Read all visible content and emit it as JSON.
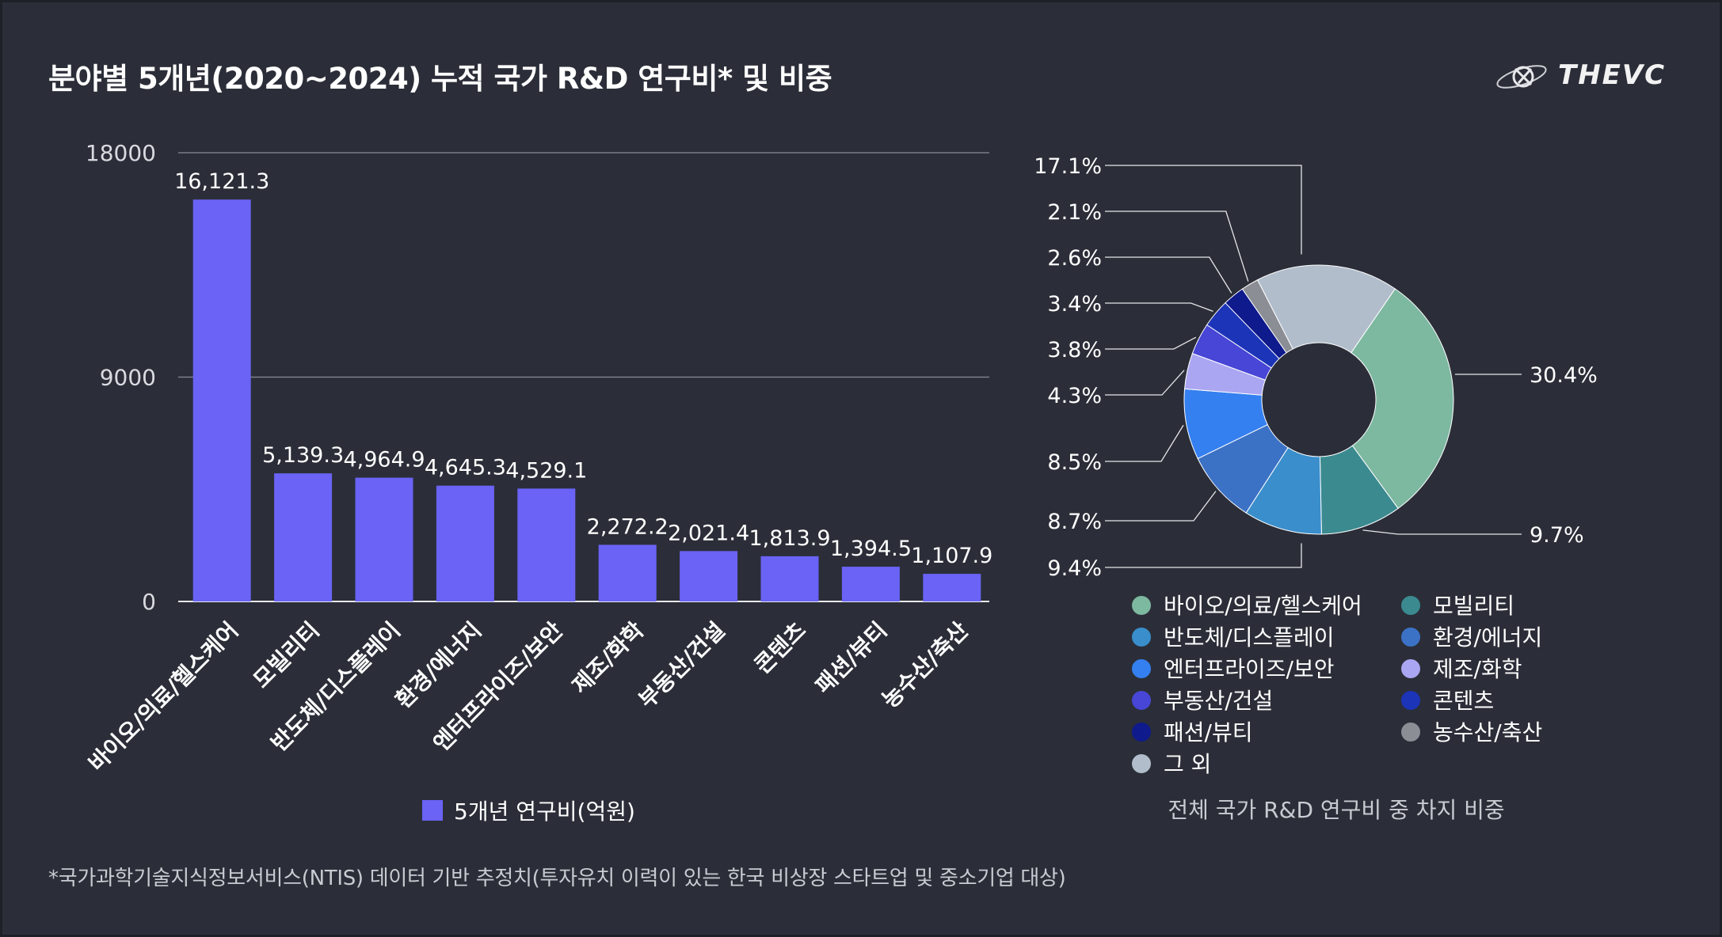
{
  "title": "분야별 5개년(2020~2024) 누적 국가 R&D 연구비* 및 비중",
  "brand": "THEVC",
  "footnote": "*국가과학기술지식정보서비스(NTIS) 데이터 기반 추정치(투자유치 이력이 있는 한국 비상장 스타트업 및 중소기업 대상)",
  "chart_data": [
    {
      "type": "bar",
      "title": "",
      "categories": [
        "바이오/의료/헬스케어",
        "모빌리티",
        "반도체/디스플레이",
        "환경/에너지",
        "엔터프라이즈/보안",
        "제조/화학",
        "부동산/건설",
        "콘텐츠",
        "패션/뷰티",
        "농수산/축산"
      ],
      "series": [
        {
          "name": "5개년 연구비(억원)",
          "values": [
            16121.3,
            5139.3,
            4964.9,
            4645.3,
            4529.1,
            2272.2,
            2021.4,
            1813.9,
            1394.5,
            1107.9
          ],
          "labels": [
            "16,121.3",
            "5,139.3",
            "4,964.9",
            "4,645.3",
            "4,529.1",
            "2,272.2",
            "2,021.4",
            "1,813.9",
            "1,394.5",
            "1,107.9"
          ],
          "color": "#6a63f5"
        }
      ],
      "yticks": [
        "0",
        "9000",
        "18000"
      ],
      "ylim": [
        0,
        18000
      ],
      "grid": true,
      "legend": "bottom"
    },
    {
      "type": "pie",
      "title": "전체 국가 R&D 연구비 중 차지 비중",
      "donut": true,
      "slices": [
        {
          "name": "바이오/의료/헬스케어",
          "value": 30.4,
          "label": "30.4%",
          "color": "#7db8a1"
        },
        {
          "name": "모빌리티",
          "value": 9.7,
          "label": "9.7%",
          "color": "#3b8a90"
        },
        {
          "name": "반도체/디스플레이",
          "value": 9.4,
          "label": "9.4%",
          "color": "#3a8ecb"
        },
        {
          "name": "환경/에너지",
          "value": 8.7,
          "label": "8.7%",
          "color": "#3c72c6"
        },
        {
          "name": "엔터프라이즈/보안",
          "value": 8.5,
          "label": "8.5%",
          "color": "#3580f0"
        },
        {
          "name": "제조/화학",
          "value": 4.3,
          "label": "4.3%",
          "color": "#aaa6f2"
        },
        {
          "name": "부동산/건설",
          "value": 3.8,
          "label": "3.8%",
          "color": "#4746d6"
        },
        {
          "name": "콘텐츠",
          "value": 3.4,
          "label": "3.4%",
          "color": "#1c34b8"
        },
        {
          "name": "패션/뷰티",
          "value": 2.6,
          "label": "2.6%",
          "color": "#0f1a8c"
        },
        {
          "name": "농수산/축산",
          "value": 2.1,
          "label": "2.1%",
          "color": "#8c8e96"
        },
        {
          "name": "그 외",
          "value": 17.1,
          "label": "17.1%",
          "color": "#b1bdcb"
        }
      ],
      "legend": "bottom"
    }
  ]
}
